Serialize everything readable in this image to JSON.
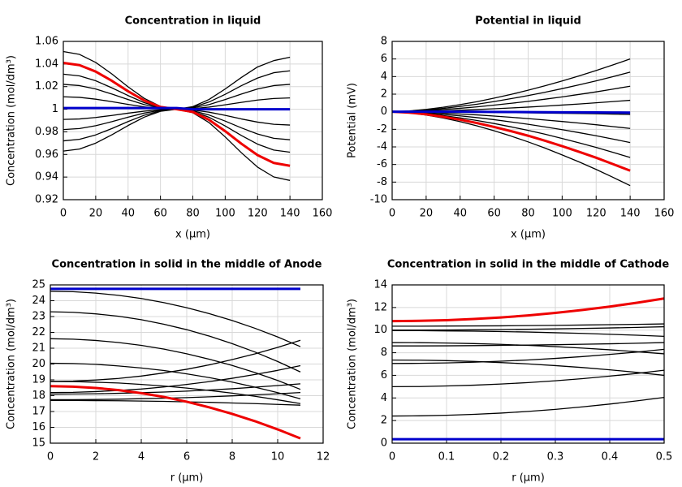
{
  "chart_data": [
    {
      "type": "line",
      "title": "Concentration in liquid",
      "x_label": "x (µm)",
      "y_label": "Concentration (mol/dm³)",
      "x": [
        0,
        10,
        20,
        30,
        40,
        50,
        60,
        70,
        80,
        90,
        100,
        110,
        120,
        130,
        140
      ],
      "xlim": [
        0,
        160
      ],
      "xticks": [
        0,
        20,
        40,
        60,
        80,
        100,
        120,
        140,
        160
      ],
      "ylim": [
        0.92,
        1.06
      ],
      "yticks": [
        0.92,
        0.94,
        0.96,
        0.98,
        1,
        1.02,
        1.04,
        1.06
      ],
      "grid": true,
      "series": [
        {
          "color": "#000000",
          "values": [
            1.051,
            1.0485,
            1.0414,
            1.0312,
            1.0198,
            1.0096,
            1.0025,
            1,
            0.9969,
            0.9882,
            0.9755,
            0.9615,
            0.9488,
            0.9401,
            0.937
          ]
        },
        {
          "color": "#000000",
          "values": [
            1.031,
            1.0295,
            1.0252,
            1.0189,
            1.0121,
            1.0058,
            1.0015,
            1,
            0.9981,
            0.9929,
            0.9852,
            0.9768,
            0.9691,
            0.9639,
            0.962
          ]
        },
        {
          "color": "#000000",
          "values": [
            1.022,
            1.0209,
            1.0179,
            1.0134,
            1.0086,
            1.0041,
            1.0011,
            1,
            0.9987,
            0.9949,
            0.9895,
            0.9835,
            0.9781,
            0.9743,
            0.973
          ]
        },
        {
          "color": "#000000",
          "values": [
            1.011,
            1.0105,
            1.0089,
            1.0067,
            1.0043,
            1.0021,
            1.0005,
            1,
            0.9993,
            0.9974,
            0.9946,
            0.9914,
            0.9886,
            0.9867,
            0.986
          ]
        },
        {
          "color": "#000000",
          "values": [
            0.991,
            0.9914,
            0.9927,
            0.9945,
            0.9965,
            0.9983,
            0.9996,
            1,
            1.0005,
            1.0019,
            1.0039,
            1.0061,
            1.0081,
            1.0095,
            1.01
          ]
        },
        {
          "color": "#000000",
          "values": [
            0.982,
            0.9829,
            0.9854,
            0.989,
            0.993,
            0.9966,
            0.9991,
            1,
            1.0011,
            1.0041,
            1.0086,
            1.0134,
            1.0179,
            1.0209,
            1.022
          ]
        },
        {
          "color": "#000000",
          "values": [
            0.972,
            0.9734,
            0.9773,
            0.9829,
            0.9891,
            0.9947,
            0.9986,
            1,
            1.0017,
            1.0064,
            1.0132,
            1.0208,
            1.0276,
            1.0323,
            1.034
          ]
        },
        {
          "color": "#000000",
          "values": [
            0.963,
            0.9648,
            0.97,
            0.9774,
            0.9856,
            0.993,
            0.9982,
            1,
            1.0023,
            1.0086,
            1.0179,
            1.0281,
            1.0374,
            1.043,
            1.046
          ]
        },
        {
          "color": "#ee0000",
          "values": [
            1.041,
            1.039,
            1.0333,
            1.0251,
            1.0159,
            1.0077,
            1.002,
            1,
            0.9976,
            0.9906,
            0.9806,
            0.9695,
            0.9594,
            0.9525,
            0.95
          ]
        },
        {
          "color": "#0000cc",
          "values": [
            1.001,
            1.001,
            1.001,
            1.001,
            1.001,
            1.001,
            1.001,
            1.001,
            1,
            1,
            1,
            1,
            1,
            1,
            1
          ]
        }
      ]
    },
    {
      "type": "line",
      "title": "Potential in liquid",
      "x_label": "x (µm)",
      "y_label": "Potential (mV)",
      "x": [
        0,
        10,
        20,
        30,
        40,
        50,
        60,
        70,
        80,
        90,
        100,
        110,
        120,
        130,
        140
      ],
      "xlim": [
        0,
        160
      ],
      "xticks": [
        0,
        20,
        40,
        60,
        80,
        100,
        120,
        140,
        160
      ],
      "ylim": [
        -10,
        8
      ],
      "yticks": [
        -10,
        -8,
        -6,
        -4,
        -2,
        0,
        2,
        4,
        6,
        8
      ],
      "grid": true,
      "series": [
        {
          "color": "#000000",
          "values": [
            0,
            0.09,
            0.27,
            0.51,
            0.81,
            1.15,
            1.55,
            1.98,
            2.45,
            2.96,
            3.5,
            4.08,
            4.69,
            5.33,
            6.0
          ]
        },
        {
          "color": "#000000",
          "values": [
            0,
            0.07,
            0.2,
            0.38,
            0.61,
            0.86,
            1.16,
            1.49,
            1.84,
            2.22,
            2.63,
            3.06,
            3.51,
            4.0,
            4.5
          ]
        },
        {
          "color": "#000000",
          "values": [
            0,
            0.04,
            0.13,
            0.25,
            0.39,
            0.56,
            0.75,
            0.96,
            1.18,
            1.43,
            1.69,
            1.97,
            2.26,
            2.58,
            2.9
          ]
        },
        {
          "color": "#000000",
          "values": [
            0,
            0.02,
            0.06,
            0.11,
            0.18,
            0.25,
            0.34,
            0.43,
            0.53,
            0.64,
            0.76,
            0.88,
            1.02,
            1.16,
            1.3
          ]
        },
        {
          "color": "#000000",
          "values": [
            0,
            0,
            -0.01,
            -0.03,
            -0.04,
            -0.06,
            -0.08,
            -0.1,
            -0.12,
            -0.15,
            -0.18,
            -0.2,
            -0.23,
            -0.27,
            -0.3
          ]
        },
        {
          "color": "#000000",
          "values": [
            0,
            -0.03,
            -0.08,
            -0.16,
            -0.26,
            -0.36,
            -0.49,
            -0.63,
            -0.78,
            -0.94,
            -1.11,
            -1.29,
            -1.48,
            -1.69,
            -1.9
          ]
        },
        {
          "color": "#000000",
          "values": [
            0,
            -0.05,
            -0.16,
            -0.3,
            -0.47,
            -0.67,
            -0.9,
            -1.16,
            -1.43,
            -1.73,
            -2.04,
            -2.38,
            -2.73,
            -3.11,
            -3.5
          ]
        },
        {
          "color": "#000000",
          "values": [
            0,
            -0.08,
            -0.23,
            -0.44,
            -0.7,
            -1.0,
            -1.34,
            -1.72,
            -2.12,
            -2.56,
            -3.04,
            -3.54,
            -4.06,
            -4.62,
            -5.2
          ]
        },
        {
          "color": "#000000",
          "values": [
            0,
            -0.12,
            -0.37,
            -0.71,
            -1.13,
            -1.61,
            -2.17,
            -2.77,
            -3.43,
            -4.14,
            -4.91,
            -5.71,
            -6.56,
            -7.47,
            -8.4
          ]
        },
        {
          "color": "#ee0000",
          "values": [
            0,
            -0.1,
            -0.3,
            -0.57,
            -0.9,
            -1.29,
            -1.73,
            -2.21,
            -2.73,
            -3.3,
            -3.91,
            -4.56,
            -5.23,
            -5.96,
            -6.7
          ]
        },
        {
          "color": "#0000cc",
          "values": [
            0,
            0,
            0,
            0,
            0,
            -0.01,
            -0.02,
            -0.03,
            -0.04,
            -0.05,
            -0.06,
            -0.07,
            -0.08,
            -0.09,
            -0.1
          ]
        }
      ]
    },
    {
      "type": "line",
      "title": "Concentration in solid in the middle of Anode",
      "x_label": "r (µm)",
      "y_label": "Concentration (mol/dm³)",
      "x": [
        0,
        1,
        2,
        3,
        4,
        5,
        6,
        7,
        8,
        9,
        10,
        11
      ],
      "xlim": [
        0,
        12
      ],
      "xticks": [
        0,
        2,
        4,
        6,
        8,
        10,
        12
      ],
      "ylim": [
        15,
        25
      ],
      "yticks": [
        15,
        16,
        17,
        18,
        19,
        20,
        21,
        22,
        23,
        24,
        25
      ],
      "grid": true,
      "series": [
        {
          "color": "#000000",
          "values": [
            24.6,
            24.57,
            24.48,
            24.34,
            24.14,
            23.88,
            23.56,
            23.18,
            22.75,
            22.26,
            21.71,
            21.1
          ]
        },
        {
          "color": "#000000",
          "values": [
            23.3,
            23.27,
            23.17,
            23.02,
            22.8,
            22.51,
            22.17,
            21.76,
            21.29,
            20.76,
            20.16,
            19.5
          ]
        },
        {
          "color": "#000000",
          "values": [
            21.6,
            21.57,
            21.49,
            21.36,
            21.18,
            20.94,
            20.65,
            20.3,
            19.91,
            19.46,
            18.96,
            18.4
          ]
        },
        {
          "color": "#000000",
          "values": [
            20.05,
            20.03,
            19.98,
            19.88,
            19.75,
            19.59,
            19.38,
            19.14,
            18.86,
            18.54,
            18.19,
            17.8
          ]
        },
        {
          "color": "#000000",
          "values": [
            18.9,
            18.89,
            18.85,
            18.8,
            18.71,
            18.61,
            18.48,
            18.33,
            18.16,
            17.96,
            17.74,
            17.5
          ]
        },
        {
          "color": "#000000",
          "values": [
            18.9,
            18.92,
            18.99,
            19.09,
            19.24,
            19.44,
            19.67,
            19.95,
            20.28,
            20.64,
            21.05,
            21.5
          ]
        },
        {
          "color": "#000000",
          "values": [
            18.2,
            18.21,
            18.26,
            18.33,
            18.42,
            18.55,
            18.71,
            18.89,
            19.1,
            19.34,
            19.6,
            19.9
          ]
        },
        {
          "color": "#000000",
          "values": [
            18.1,
            18.11,
            18.12,
            18.15,
            18.19,
            18.23,
            18.29,
            18.36,
            18.44,
            18.54,
            18.64,
            18.75
          ]
        },
        {
          "color": "#000000",
          "values": [
            17.75,
            17.75,
            17.76,
            17.78,
            17.81,
            17.84,
            17.88,
            17.93,
            17.99,
            18.05,
            18.12,
            18.2
          ]
        },
        {
          "color": "#000000",
          "values": [
            17.7,
            17.7,
            17.69,
            17.68,
            17.66,
            17.64,
            17.61,
            17.58,
            17.54,
            17.5,
            17.45,
            17.4
          ]
        },
        {
          "color": "#ee0000",
          "values": [
            18.6,
            18.57,
            18.49,
            18.35,
            18.16,
            17.92,
            17.62,
            17.26,
            16.85,
            16.39,
            15.87,
            15.3
          ]
        },
        {
          "color": "#0000cc",
          "values": [
            24.75,
            24.75,
            24.75,
            24.75,
            24.75,
            24.75,
            24.75,
            24.75,
            24.75,
            24.75,
            24.75,
            24.75
          ]
        }
      ]
    },
    {
      "type": "line",
      "title": "Concentration in solid in the middle of Cathode",
      "x_label": "r (µm)",
      "y_label": "Concentration (mol/dm³)",
      "x": [
        0,
        0.05,
        0.1,
        0.15,
        0.2,
        0.25,
        0.3,
        0.35,
        0.4,
        0.45,
        0.5
      ],
      "xlim": [
        0,
        0.5
      ],
      "xticks": [
        0,
        0.1,
        0.2,
        0.3,
        0.4,
        0.5
      ],
      "ylim": [
        0,
        14
      ],
      "yticks": [
        0,
        2,
        4,
        6,
        8,
        10,
        12,
        14
      ],
      "grid": true,
      "series": [
        {
          "color": "#000000",
          "values": [
            2.4,
            2.42,
            2.47,
            2.55,
            2.66,
            2.81,
            2.99,
            3.21,
            3.46,
            3.74,
            4.05
          ]
        },
        {
          "color": "#000000",
          "values": [
            5.0,
            5.01,
            5.06,
            5.13,
            5.23,
            5.36,
            5.52,
            5.71,
            5.93,
            6.17,
            6.45
          ]
        },
        {
          "color": "#000000",
          "values": [
            7.05,
            7.06,
            7.1,
            7.16,
            7.25,
            7.36,
            7.5,
            7.66,
            7.85,
            8.06,
            8.3
          ]
        },
        {
          "color": "#000000",
          "values": [
            7.35,
            7.34,
            7.3,
            7.23,
            7.13,
            7.01,
            6.86,
            6.69,
            6.49,
            6.26,
            6.0
          ]
        },
        {
          "color": "#000000",
          "values": [
            8.6,
            8.6,
            8.61,
            8.63,
            8.65,
            8.68,
            8.71,
            8.75,
            8.79,
            8.84,
            8.9
          ]
        },
        {
          "color": "#000000",
          "values": [
            8.9,
            8.89,
            8.86,
            8.81,
            8.74,
            8.65,
            8.54,
            8.41,
            8.26,
            8.09,
            7.9
          ]
        },
        {
          "color": "#000000",
          "values": [
            9.95,
            9.95,
            9.93,
            9.91,
            9.87,
            9.83,
            9.77,
            9.71,
            9.63,
            9.55,
            9.45
          ]
        },
        {
          "color": "#000000",
          "values": [
            10.0,
            10.0,
            10.01,
            10.03,
            10.05,
            10.08,
            10.11,
            10.15,
            10.19,
            10.24,
            10.3
          ]
        },
        {
          "color": "#000000",
          "values": [
            10.35,
            10.35,
            10.36,
            10.37,
            10.38,
            10.4,
            10.42,
            10.45,
            10.48,
            10.51,
            10.55
          ]
        },
        {
          "color": "#ee0000",
          "values": [
            10.8,
            10.82,
            10.88,
            10.98,
            11.12,
            11.3,
            11.52,
            11.78,
            12.08,
            12.42,
            12.8
          ]
        },
        {
          "color": "#0000cc",
          "values": [
            0.35,
            0.35,
            0.35,
            0.35,
            0.35,
            0.35,
            0.35,
            0.35,
            0.35,
            0.35,
            0.35
          ]
        }
      ]
    }
  ]
}
